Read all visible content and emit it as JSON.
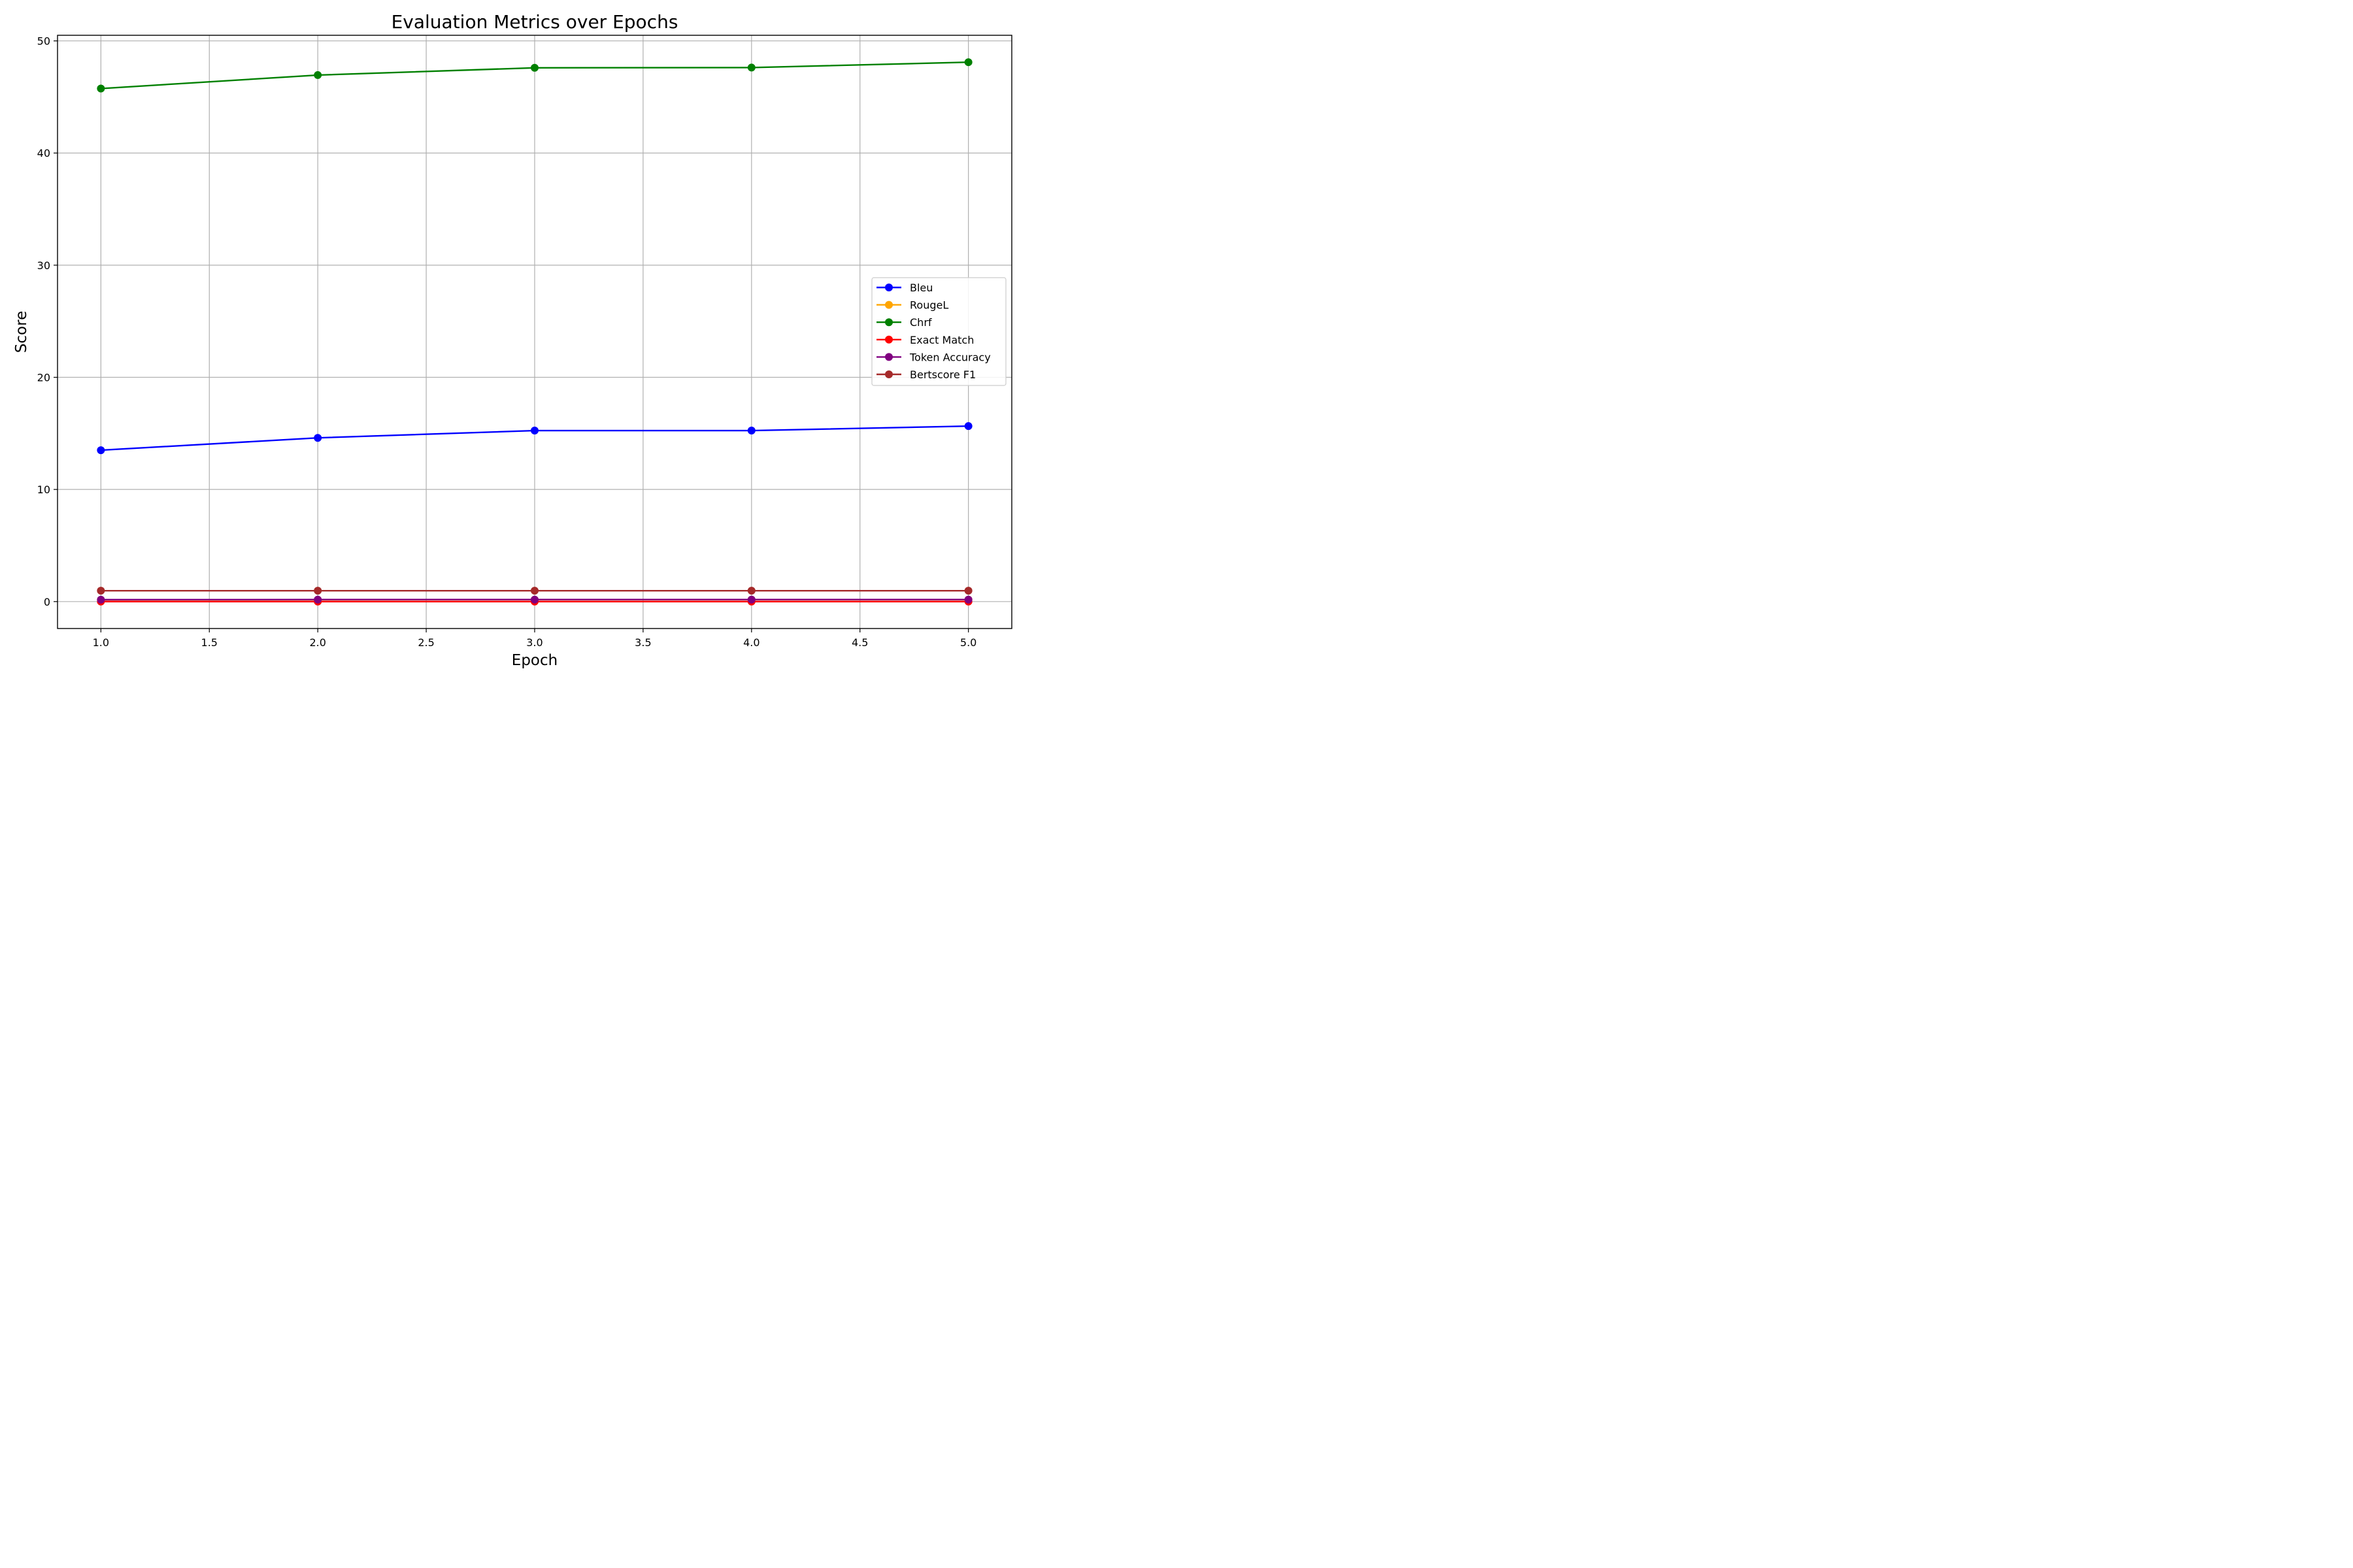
{
  "chart_data": {
    "type": "line",
    "title": "Evaluation Metrics over Epochs",
    "xlabel": "Epoch",
    "ylabel": "Score",
    "xlim": [
      0.8,
      5.2
    ],
    "ylim": [
      -2.4,
      50.5
    ],
    "xticks": [
      "1.0",
      "1.5",
      "2.0",
      "2.5",
      "3.0",
      "3.5",
      "4.0",
      "4.5",
      "5.0"
    ],
    "xtick_values": [
      1.0,
      1.5,
      2.0,
      2.5,
      3.0,
      3.5,
      4.0,
      4.5,
      5.0
    ],
    "yticks": [
      "0",
      "10",
      "20",
      "30",
      "40",
      "50"
    ],
    "ytick_values": [
      0,
      10,
      20,
      30,
      40,
      50
    ],
    "grid": true,
    "legend_position": "center-right",
    "x": [
      1,
      2,
      3,
      4,
      5
    ],
    "series": [
      {
        "name": "Bleu",
        "color": "#0000ff",
        "values": [
          13.5,
          14.6,
          15.25,
          15.25,
          15.65
        ]
      },
      {
        "name": "RougeL",
        "color": "#ffa500",
        "values": [
          0.15,
          0.16,
          0.17,
          0.17,
          0.17
        ]
      },
      {
        "name": "Chrf",
        "color": "#008000",
        "values": [
          45.75,
          46.95,
          47.6,
          47.62,
          48.1
        ]
      },
      {
        "name": "Exact Match",
        "color": "#ff0000",
        "values": [
          0.0,
          0.0,
          0.0,
          0.0,
          0.0
        ]
      },
      {
        "name": "Token Accuracy",
        "color": "#800080",
        "values": [
          0.17,
          0.18,
          0.18,
          0.18,
          0.18
        ]
      },
      {
        "name": "Bertscore F1",
        "color": "#a52a2a",
        "values": [
          0.97,
          0.97,
          0.97,
          0.97,
          0.97
        ]
      }
    ]
  }
}
